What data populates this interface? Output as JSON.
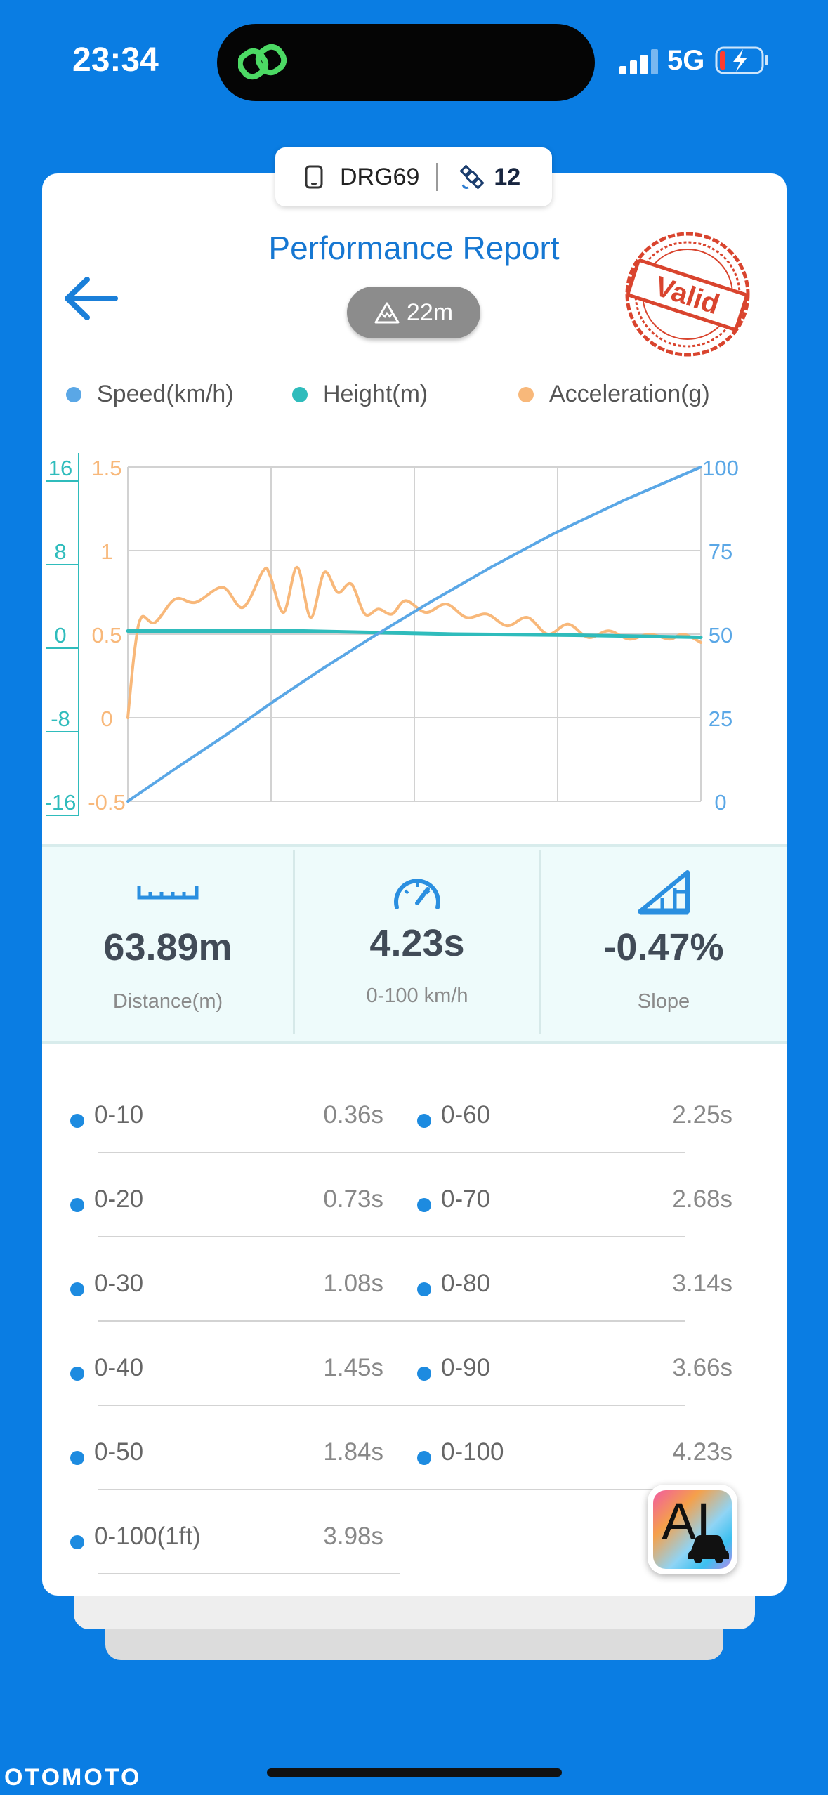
{
  "status_bar": {
    "time": "23:34",
    "network": "5G"
  },
  "device": {
    "code": "DRG69",
    "satellites": "12"
  },
  "header": {
    "title": "Performance Report",
    "altitude": "22m",
    "stamp_text": "Valid"
  },
  "legend": [
    {
      "label": "Speed(km/h)",
      "color": "#5aa7e6"
    },
    {
      "label": "Height(m)",
      "color": "#2fbcbc"
    },
    {
      "label": "Acceleration(g)",
      "color": "#f8b87a"
    }
  ],
  "chart_data": {
    "type": "line",
    "x_range": [
      0,
      4.23
    ],
    "axes": {
      "height_ticks": [
        "16",
        "8",
        "0",
        "-8",
        "-16"
      ],
      "accel_ticks": [
        "1.5",
        "1",
        "0.5",
        "0",
        "-0.5"
      ],
      "speed_ticks": [
        "100",
        "75",
        "50",
        "25",
        "0"
      ],
      "height_range": [
        -16,
        16
      ],
      "accel_range": [
        -0.5,
        1.5
      ],
      "speed_range": [
        0,
        100
      ]
    },
    "grid": true,
    "series": [
      {
        "name": "Speed(km/h)",
        "color": "#5aa7e6",
        "x": [
          0,
          0.36,
          0.73,
          1.08,
          1.45,
          1.84,
          2.25,
          2.68,
          3.14,
          3.66,
          4.23
        ],
        "y": [
          0,
          10,
          20,
          30,
          40,
          50,
          60,
          70,
          80,
          90,
          100
        ]
      },
      {
        "name": "Height(m)",
        "color": "#2fbcbc",
        "x": [
          0,
          1.3,
          2.4,
          3.3,
          4.23
        ],
        "y": [
          0.3,
          0.3,
          0.0,
          -0.1,
          -0.3
        ]
      },
      {
        "name": "Acceleration(g)",
        "color": "#f8b87a",
        "x": [
          0,
          0.05,
          0.1,
          0.2,
          0.35,
          0.5,
          0.7,
          0.85,
          1.0,
          1.05,
          1.15,
          1.25,
          1.35,
          1.45,
          1.55,
          1.65,
          1.75,
          1.85,
          1.95,
          2.05,
          2.2,
          2.35,
          2.5,
          2.65,
          2.8,
          2.95,
          3.1,
          3.25,
          3.4,
          3.55,
          3.7,
          3.85,
          4.0,
          4.1,
          4.23
        ],
        "y": [
          0.0,
          0.4,
          0.6,
          0.57,
          0.71,
          0.69,
          0.78,
          0.66,
          0.88,
          0.85,
          0.63,
          0.9,
          0.6,
          0.87,
          0.75,
          0.8,
          0.62,
          0.65,
          0.62,
          0.7,
          0.63,
          0.68,
          0.6,
          0.62,
          0.55,
          0.6,
          0.5,
          0.56,
          0.48,
          0.52,
          0.47,
          0.5,
          0.47,
          0.5,
          0.45
        ]
      }
    ]
  },
  "stats": [
    {
      "value": "63.89m",
      "label": "Distance(m)"
    },
    {
      "value": "4.23s",
      "label": "0-100 km/h"
    },
    {
      "value": "-0.47%",
      "label": "Slope"
    }
  ],
  "splits_left": [
    {
      "label": "0-10",
      "value": "0.36s"
    },
    {
      "label": "0-20",
      "value": "0.73s"
    },
    {
      "label": "0-30",
      "value": "1.08s"
    },
    {
      "label": "0-40",
      "value": "1.45s"
    },
    {
      "label": "0-50",
      "value": "1.84s"
    },
    {
      "label": "0-100(1ft)",
      "value": "3.98s"
    }
  ],
  "splits_right": [
    {
      "label": "0-60",
      "value": "2.25s"
    },
    {
      "label": "0-70",
      "value": "2.68s"
    },
    {
      "label": "0-80",
      "value": "3.14s"
    },
    {
      "label": "0-90",
      "value": "3.66s"
    },
    {
      "label": "0-100",
      "value": "4.23s"
    }
  ],
  "ai_button": {
    "label": "AI"
  },
  "watermark": "OTOMOTO"
}
